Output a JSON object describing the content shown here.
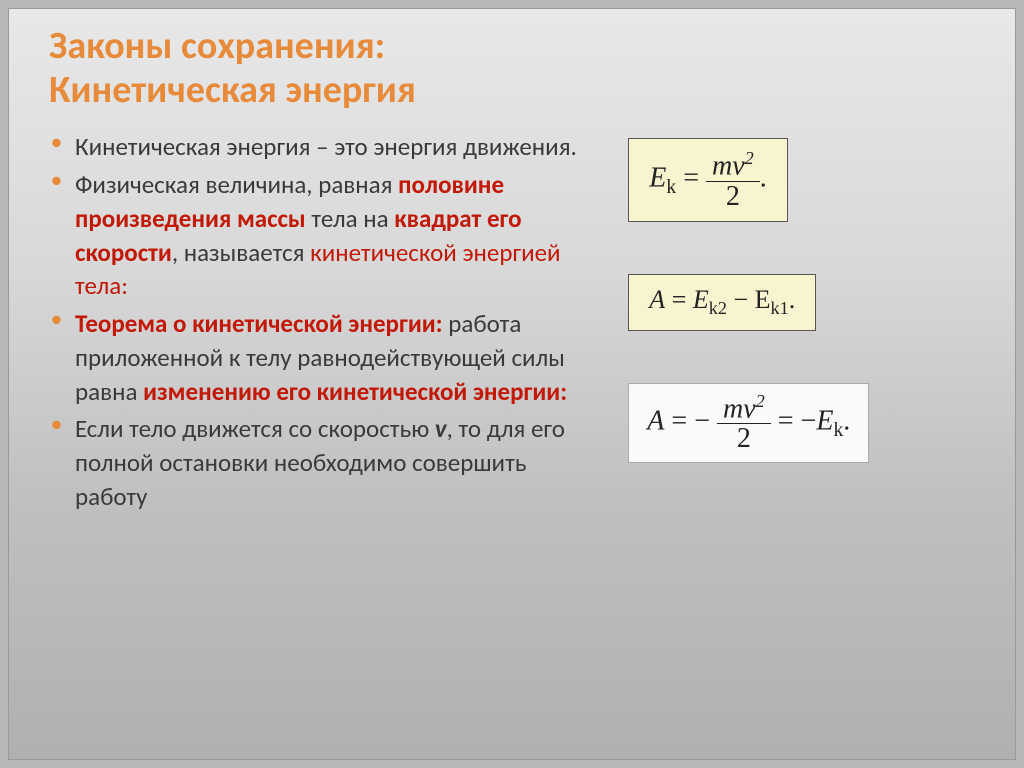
{
  "title_line1": "Законы сохранения:",
  "title_line2": "Кинетическая энергия",
  "bullets": {
    "b1_p1": "Кинетическая энергия – это энергия движения.",
    "b2_p1": "Физическая величина, равная ",
    "b2_red1": "половине произведения массы",
    "b2_p2": " тела на ",
    "b2_red2": "квадрат его скорости",
    "b2_p3": ", называется ",
    "b2_red3": "кинетической энергией тела",
    "b2_colon": ":",
    "b3_red1": "Теорема о кинетической энергии: ",
    "b3_p1": "работа приложенной к телу равнодействующей силы равна ",
    "b3_red2": "изменению его кинетической энергии:",
    "b4_p1": "Если тело движется со скоростью ",
    "b4_v": "v",
    "b4_p2": ", то для его полной остановки необходимо совершить работу"
  },
  "formulas": {
    "f1": {
      "lhs": "E",
      "lhs_sub": "k",
      "num_m1": "m",
      "num_v": "v",
      "num_exp": "2",
      "den": "2",
      "dot": "."
    },
    "f2": {
      "A": "A",
      "eq": " = ",
      "E": "E",
      "k2": "k2",
      "minus": " − ",
      "E2": "E",
      "k1": "k1",
      "dot": "."
    },
    "f3": {
      "A": "A",
      "eq1": " = −",
      "num_m1": "m",
      "num_v": "v",
      "num_exp": "2",
      "den": "2",
      "eq2": " = −",
      "E": "E",
      "ksub": "k",
      "dot": "."
    }
  },
  "style": {
    "accent_color": "#e78a3a",
    "red_color": "#c21807",
    "text_color": "#3a3a3a",
    "formula_box_bg": "#f7f4cf",
    "formula_plain_bg": "#fafafa",
    "title_fontsize": 38,
    "body_fontsize": 25,
    "formula_fontsize": 28
  }
}
